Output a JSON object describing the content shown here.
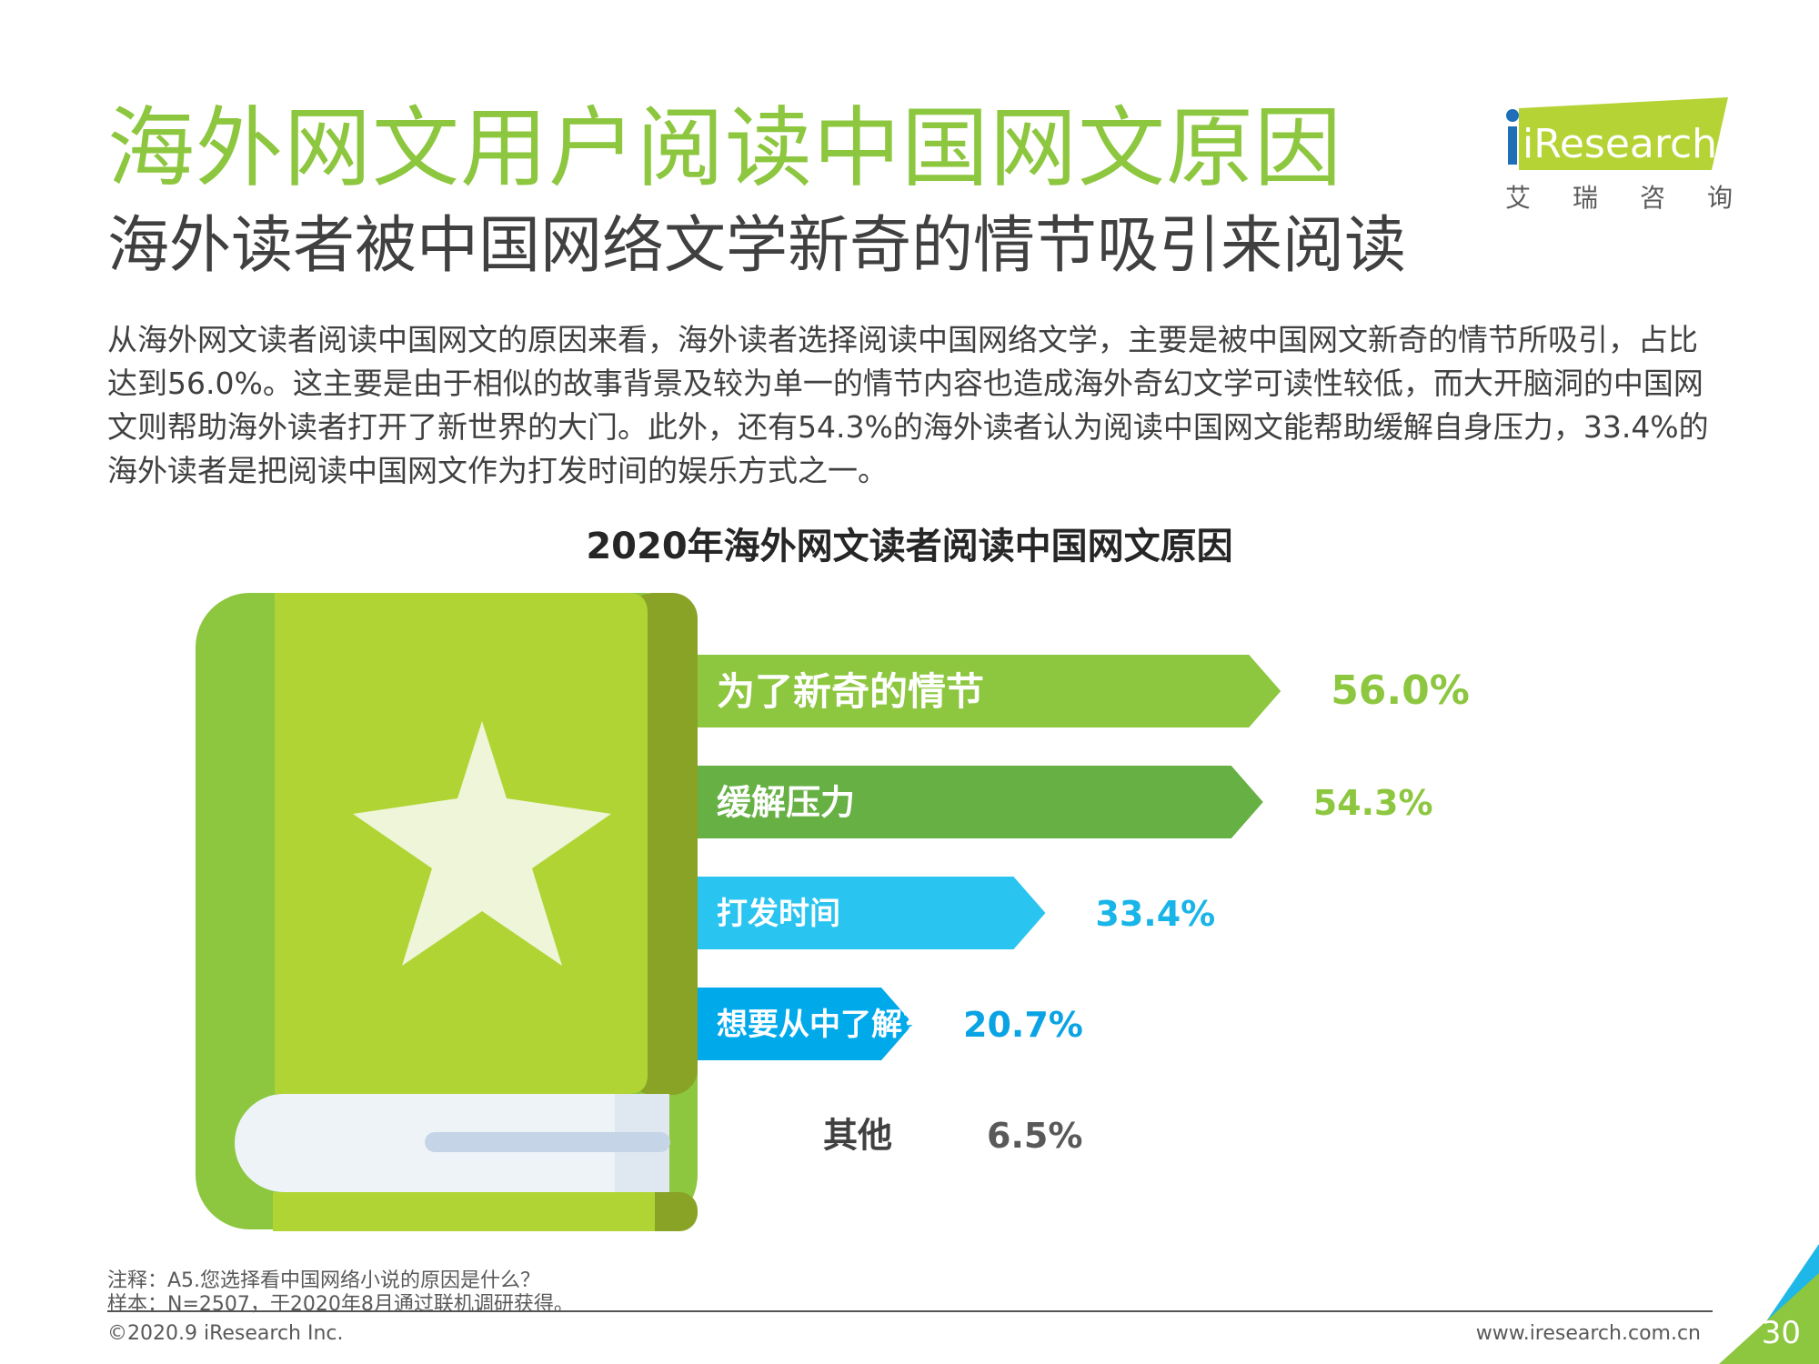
{
  "header": {
    "title": "海外网文用户阅读中国网文原因",
    "subtitle": "海外读者被中国网络文学新奇的情节吸引来阅读",
    "logo_text": "iResearch",
    "logo_sub": [
      "艾",
      "瑞",
      "咨",
      "询"
    ]
  },
  "body_text": "从海外网文读者阅读中国网文的原因来看，海外读者选择阅读中国网络文学，主要是被中国网文新奇的情节所吸引，占比达到56.0%。这主要是由于相似的故事背景及较为单一的情节内容也造成海外奇幻文学可读性较低，而大开脑洞的中国网文则帮助海外读者打开了新世界的大门。此外，还有54.3%的海外读者认为阅读中国网文能帮助缓解自身压力，33.4%的海外读者是把阅读中国网文作为打发时间的娱乐方式之一。",
  "chart_data": {
    "type": "bar",
    "orientation": "horizontal",
    "title": "2020年海外网文读者阅读中国网文原因",
    "categories": [
      "为了新奇的情节",
      "缓解压力",
      "打发时间",
      "想要从中了解东方文化",
      "其他"
    ],
    "values": [
      56.0,
      54.3,
      33.4,
      20.7,
      6.5
    ],
    "value_labels": [
      "56.0%",
      "54.3%",
      "33.4%",
      "20.7%",
      "6.5%"
    ],
    "bar_colors": [
      "#8dc63f",
      "#66b044",
      "#29c4f0",
      "#00a9ea",
      "#ffffff"
    ],
    "label_colors": [
      "#8dc63f",
      "#8dc63f",
      "#19b5e8",
      "#0aa3e3",
      "#595959"
    ],
    "unit": "%",
    "xlim": [
      0,
      60
    ]
  },
  "footer": {
    "note": "注释：A5.您选择看中国网络小说的原因是什么？",
    "sample": "样本：N=2507，于2020年8月通过联机调研获得。",
    "copyright": "©2020.9 iResearch Inc.",
    "website": "www.iresearch.com.cn",
    "page": "30"
  }
}
